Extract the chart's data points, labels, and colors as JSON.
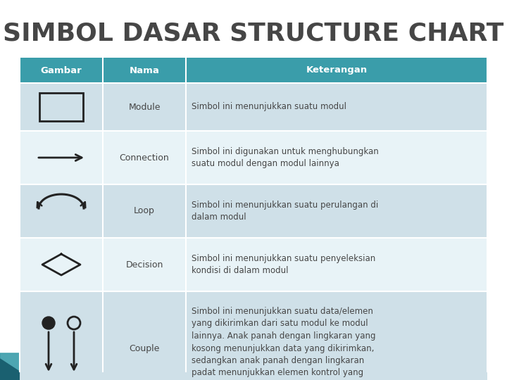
{
  "title": "SIMBOL DASAR STRUCTURE CHART",
  "title_color": "#464646",
  "header_bg": "#3a9daa",
  "header_text_color": "#ffffff",
  "row_bg_odd": "#cfe0e8",
  "row_bg_even": "#e8f3f7",
  "col_headers": [
    "Gambar",
    "Nama",
    "Keterangan"
  ],
  "rows": [
    {
      "name": "Module",
      "keterangan": "Simbol ini menunjukkan suatu modul"
    },
    {
      "name": "Connection",
      "keterangan": "Simbol ini digunakan untuk menghubungkan\nsuatu modul dengan modul lainnya"
    },
    {
      "name": "Loop",
      "keterangan": "Simbol ini menunjukkan suatu perulangan di\ndalam modul"
    },
    {
      "name": "Decision",
      "keterangan": "Simbol ini menunjukkan suatu penyeleksian\nkondisi di dalam modul"
    },
    {
      "name": "Couple",
      "keterangan": "Simbol ini menunjukkan suatu data/elemen\nyang dikirimkan dari satu modul ke modul\nlainnya. Anak panah dengan lingkaran yang\nkosong menunjukkan data yang dikirimkan,\nsedangkan anak panah dengan lingkaran\npadat menunjukkan elemen kontrol yang\ndikirimkan"
    }
  ],
  "symbol_color": "#222222",
  "bg_color": "#ffffff",
  "corner_teal": "#3a9daa",
  "corner_dark": "#1a6070"
}
